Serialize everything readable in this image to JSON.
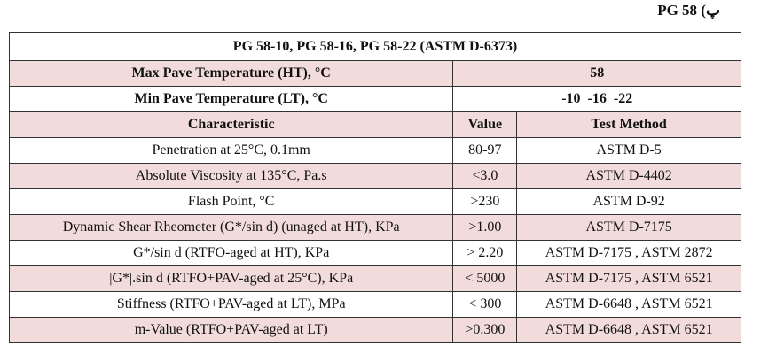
{
  "caption": "PG 58 (پ",
  "table": {
    "title": "PG 58-10, PG 58-16, PG 58-22 (ASTM D-6373)",
    "max_temp": {
      "label": "Max Pave Temperature (HT), °C",
      "value": "58"
    },
    "min_temp": {
      "label": "Min Pave Temperature (LT), °C",
      "value": "-10  -16  -22"
    },
    "headers": [
      "Characteristic",
      "Value",
      "Test Method"
    ],
    "rows": [
      [
        "Penetration at 25°C, 0.1mm",
        "80-97",
        "ASTM D-5"
      ],
      [
        "Absolute Viscosity at 135°C, Pa.s",
        "<3.0",
        "ASTM D-4402"
      ],
      [
        "Flash Point, °C",
        ">230",
        "ASTM D-92"
      ],
      [
        "Dynamic Shear Rheometer (G*/sin d) (unaged at HT), KPa",
        ">1.00",
        "ASTM D-7175"
      ],
      [
        "G*/sin d (RTFO-aged at HT), KPa",
        "> 2.20",
        "ASTM D-7175 , ASTM 2872"
      ],
      [
        "|G*|.sin d  (RTFO+PAV-aged at 25°C), KPa",
        "< 5000",
        "ASTM D-7175 , ASTM 6521"
      ],
      [
        "Stiffness (RTFO+PAV-aged at LT), MPa",
        "< 300",
        "ASTM D-6648 , ASTM 6521"
      ],
      [
        "m-Value (RTFO+PAV-aged at LT)",
        ">0.300",
        "ASTM D-6648 , ASTM 6521"
      ]
    ]
  },
  "colors": {
    "shade": "#f2dcdb",
    "border": "#333333"
  }
}
